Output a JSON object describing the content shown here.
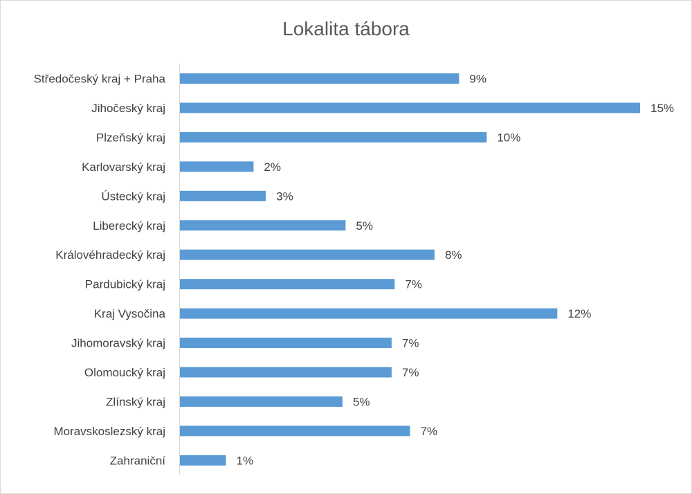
{
  "chart_data": {
    "type": "bar",
    "orientation": "horizontal",
    "title": "Lokalita tábora",
    "categories": [
      "Středočeský kraj + Praha",
      "Jihočeský kraj",
      "Plzeňský kraj",
      "Karlovarský kraj",
      "Ústecký kraj",
      "Liberecký kraj",
      "Královéhradecký kraj",
      "Pardubický kraj",
      "Kraj Vysočina",
      "Jihomoravský kraj",
      "Olomoucký kraj",
      "Zlínský kraj",
      "Moravskoslezský kraj",
      "Zahraniční"
    ],
    "values": [
      9.1,
      15.0,
      10.0,
      2.4,
      2.8,
      5.4,
      8.3,
      7.0,
      12.3,
      6.9,
      6.9,
      5.3,
      7.5,
      1.5
    ],
    "value_labels": [
      "9%",
      "15%",
      "10%",
      "2%",
      "3%",
      "5%",
      "8%",
      "7%",
      "12%",
      "7%",
      "7%",
      "5%",
      "7%",
      "1%"
    ],
    "xlim": [
      0,
      15
    ],
    "grid": false,
    "legend": "none",
    "bar_color": "#5b9bd5"
  }
}
